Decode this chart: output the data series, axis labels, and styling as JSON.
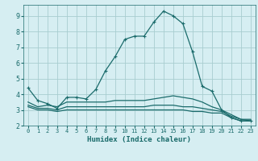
{
  "xlabel": "Humidex (Indice chaleur)",
  "bg_color": "#d6eef2",
  "grid_color": "#a8cdd0",
  "line_color": "#1a6b6b",
  "spine_color": "#1a6b6b",
  "xlim": [
    -0.5,
    23.5
  ],
  "ylim": [
    2.0,
    9.7
  ],
  "xticks": [
    0,
    1,
    2,
    3,
    4,
    5,
    6,
    7,
    8,
    9,
    10,
    11,
    12,
    13,
    14,
    15,
    16,
    17,
    18,
    19,
    20,
    21,
    22,
    23
  ],
  "yticks": [
    2,
    3,
    4,
    5,
    6,
    7,
    8,
    9
  ],
  "lines": [
    {
      "x": [
        0,
        1,
        2,
        3,
        4,
        5,
        6,
        7,
        8,
        9,
        10,
        11,
        12,
        13,
        14,
        15,
        16,
        17,
        18,
        19,
        20,
        21,
        22,
        23
      ],
      "y": [
        4.4,
        3.6,
        3.4,
        3.1,
        3.8,
        3.8,
        3.7,
        4.3,
        5.5,
        6.4,
        7.5,
        7.7,
        7.7,
        8.6,
        9.3,
        9.0,
        8.5,
        6.7,
        4.5,
        4.2,
        3.0,
        2.5,
        2.3,
        2.3
      ],
      "marker": "+"
    },
    {
      "x": [
        0,
        1,
        2,
        3,
        4,
        5,
        6,
        7,
        8,
        9,
        10,
        11,
        12,
        13,
        14,
        15,
        16,
        17,
        18,
        19,
        20,
        21,
        22,
        23
      ],
      "y": [
        3.5,
        3.2,
        3.3,
        3.2,
        3.5,
        3.5,
        3.5,
        3.5,
        3.5,
        3.6,
        3.6,
        3.6,
        3.6,
        3.7,
        3.8,
        3.9,
        3.8,
        3.7,
        3.5,
        3.2,
        3.0,
        2.7,
        2.4,
        2.4
      ],
      "marker": null
    },
    {
      "x": [
        0,
        1,
        2,
        3,
        4,
        5,
        6,
        7,
        8,
        9,
        10,
        11,
        12,
        13,
        14,
        15,
        16,
        17,
        18,
        19,
        20,
        21,
        22,
        23
      ],
      "y": [
        3.3,
        3.1,
        3.1,
        3.0,
        3.2,
        3.2,
        3.2,
        3.2,
        3.2,
        3.2,
        3.2,
        3.2,
        3.2,
        3.3,
        3.3,
        3.3,
        3.2,
        3.2,
        3.1,
        3.0,
        2.9,
        2.6,
        2.4,
        2.3
      ],
      "marker": null
    },
    {
      "x": [
        0,
        1,
        2,
        3,
        4,
        5,
        6,
        7,
        8,
        9,
        10,
        11,
        12,
        13,
        14,
        15,
        16,
        17,
        18,
        19,
        20,
        21,
        22,
        23
      ],
      "y": [
        3.2,
        3.0,
        3.0,
        2.9,
        3.0,
        3.0,
        3.0,
        3.0,
        3.0,
        3.0,
        3.0,
        3.0,
        3.0,
        3.0,
        3.0,
        3.0,
        3.0,
        2.9,
        2.9,
        2.8,
        2.8,
        2.5,
        2.3,
        2.3
      ],
      "marker": null
    }
  ]
}
